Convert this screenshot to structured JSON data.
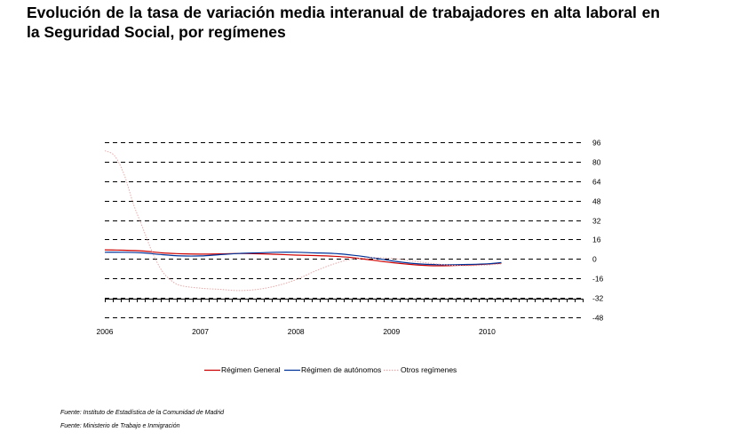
{
  "chart_data": {
    "type": "line",
    "title": "Evolución de la tasa de variación media interanual de trabajadores en alta laboral en la Seguridad Social, por  regímenes",
    "xlabel": "",
    "ylabel": "",
    "x_ticks": [
      "2006",
      "2007",
      "2008",
      "2009",
      "2010"
    ],
    "y_ticks": [
      96,
      80,
      64,
      48,
      32,
      16,
      0,
      -16,
      -32,
      -48
    ],
    "y_ticks_labels": [
      "96",
      "80",
      "64",
      "48",
      "32",
      "16",
      "0",
      "-16",
      "-32",
      "-48"
    ],
    "xlim": [
      2006.0,
      2011.0
    ],
    "ylim": [
      -48,
      96
    ],
    "grid": "horizontal dashed",
    "y_axis_position": "right",
    "legend_position": "bottom",
    "series": [
      {
        "name": "Régimen General",
        "color": "#cc0000",
        "style": "solid",
        "x": [
          2006.0,
          2006.2,
          2006.4,
          2006.6,
          2006.8,
          2007.0,
          2007.2,
          2007.4,
          2007.6,
          2007.8,
          2008.0,
          2008.2,
          2008.4,
          2008.6,
          2008.8,
          2009.0,
          2009.2,
          2009.4,
          2009.6,
          2009.8,
          2010.0,
          2010.15
        ],
        "y": [
          7.5,
          7.2,
          6.5,
          5.0,
          4.3,
          4.0,
          4.2,
          4.5,
          4.3,
          3.8,
          3.2,
          2.8,
          2.2,
          1.0,
          -1.0,
          -3.0,
          -4.5,
          -5.5,
          -5.5,
          -5.0,
          -4.2,
          -3.5
        ]
      },
      {
        "name": "Régimen de autónomos",
        "color": "#003399",
        "style": "solid",
        "x": [
          2006.0,
          2006.2,
          2006.4,
          2006.6,
          2006.8,
          2007.0,
          2007.2,
          2007.4,
          2007.6,
          2007.8,
          2008.0,
          2008.2,
          2008.4,
          2008.6,
          2008.8,
          2009.0,
          2009.2,
          2009.4,
          2009.6,
          2009.8,
          2010.0,
          2010.15
        ],
        "y": [
          5.5,
          5.5,
          5.0,
          3.5,
          2.5,
          2.5,
          3.5,
          4.5,
          5.0,
          5.5,
          5.5,
          5.0,
          4.5,
          3.0,
          1.0,
          -1.5,
          -3.5,
          -4.5,
          -4.8,
          -4.5,
          -4.0,
          -3.0
        ]
      },
      {
        "name": "Otros regímenes",
        "color": "#e9a8a8",
        "style": "dotted",
        "x": [
          2006.0,
          2006.1,
          2006.2,
          2006.3,
          2006.4,
          2006.5,
          2006.6,
          2006.7,
          2006.8,
          2007.0,
          2007.2,
          2007.4,
          2007.6,
          2007.8,
          2008.0,
          2008.2,
          2008.4,
          2008.6,
          2008.8,
          2009.0,
          2009.2,
          2009.4,
          2009.6,
          2009.8,
          2010.0,
          2010.15
        ],
        "y": [
          89.0,
          85.0,
          70.0,
          45.0,
          25.0,
          5.0,
          -10.0,
          -18.0,
          -22.0,
          -24.0,
          -25.0,
          -26.0,
          -25.0,
          -22.0,
          -17.0,
          -10.0,
          -4.0,
          0.0,
          1.0,
          0.5,
          -1.5,
          -3.5,
          -5.0,
          -5.5,
          -5.0,
          -4.0
        ]
      }
    ]
  },
  "footer": {
    "source_1": "Fuente: Instituto de Estadística de la Comunidad de Madrid",
    "source_2": "Fuente: Ministerio de Trabajo e Inmigración"
  }
}
